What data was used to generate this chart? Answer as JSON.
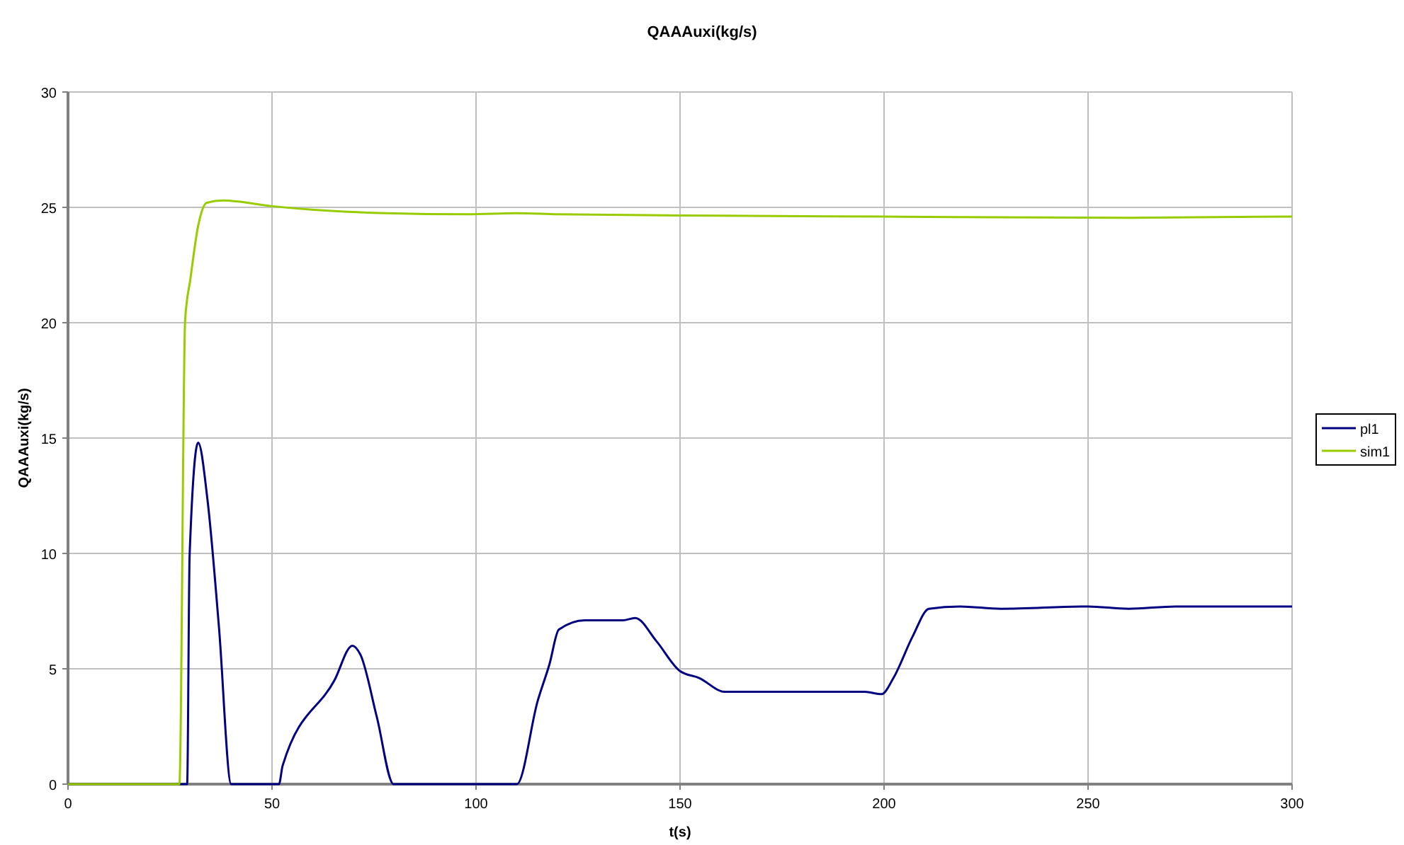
{
  "chart_data": {
    "type": "line",
    "title": "QAAAuxi(kg/s)",
    "xlabel": "t(s)",
    "ylabel": "QAAAuxi(kg/s)",
    "xlim": [
      0,
      300
    ],
    "xticks": [
      0,
      50,
      100,
      150,
      200,
      250,
      300
    ],
    "ylim": [
      0,
      30
    ],
    "yticks": [
      0,
      5,
      10,
      15,
      20,
      25,
      30
    ],
    "grid": true,
    "legend": "right",
    "line_style": "solid",
    "series": [
      {
        "name": "pl1",
        "color": "#000080",
        "x": [
          0,
          29.2,
          29.8,
          31.9,
          34.2,
          37,
          40,
          51.7,
          52.6,
          65.3,
          69.7,
          71.7,
          75.7,
          79.8,
          110,
          115.1,
          118,
          120.3,
          126.7,
          136,
          139,
          144.2,
          150,
          154.7,
          161,
          195.3,
          199.4,
          202.3,
          207,
          211,
          218.6,
          228.6,
          250,
          259.9,
          271.5,
          300
        ],
        "values": [
          0,
          0,
          9.9,
          14.8,
          12.3,
          6.8,
          0,
          0,
          0.8,
          4.5,
          6.0,
          5.6,
          2.9,
          0,
          0,
          3.6,
          5.2,
          6.7,
          7.1,
          7.1,
          7.2,
          6.2,
          4.9,
          4.6,
          4.0,
          4.0,
          3.9,
          4.6,
          6.4,
          7.6,
          7.7,
          7.6,
          7.7,
          7.6,
          7.7,
          7.7
        ]
      },
      {
        "name": "sim1",
        "color": "#99cc00",
        "x": [
          0,
          27.3,
          28.7,
          30,
          31.9,
          34,
          38,
          50,
          59.7,
          78,
          98,
          110,
          120,
          150,
          200,
          260,
          300
        ],
        "values": [
          0,
          0,
          20.1,
          21.9,
          24.2,
          25.2,
          25.3,
          25.05,
          24.9,
          24.75,
          24.7,
          24.75,
          24.7,
          24.65,
          24.6,
          24.55,
          24.6
        ]
      }
    ]
  }
}
